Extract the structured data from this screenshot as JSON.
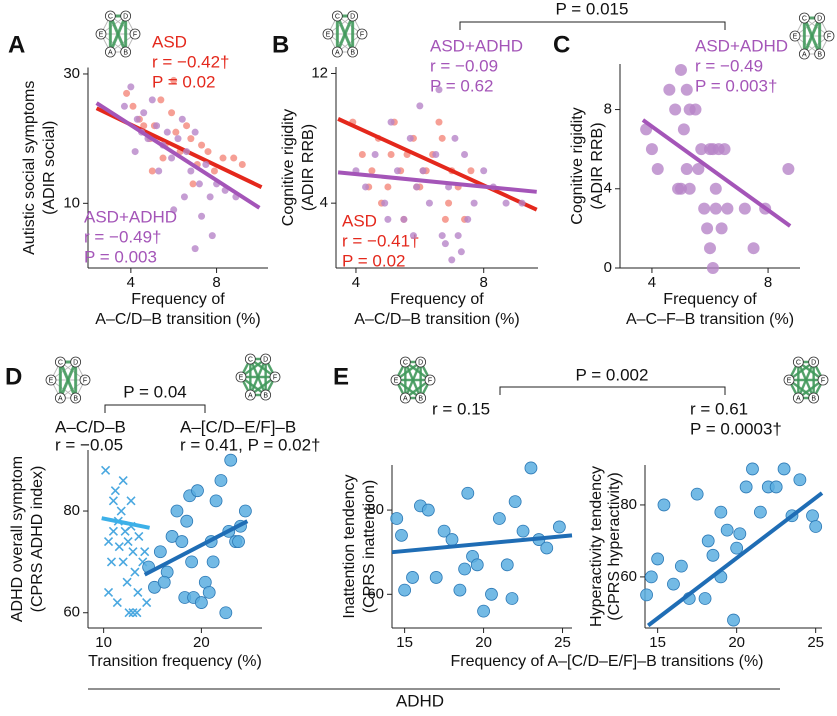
{
  "chart_data": [
    {
      "type": "scatter",
      "panel": "A",
      "xlabel": [
        "Frequency of",
        "A–C/D–B transition (%)"
      ],
      "ylabel": [
        "Autistic social symptoms",
        "(ADIR social)"
      ],
      "xlim": [
        2,
        10.4
      ],
      "ylim": [
        0,
        31
      ],
      "xticks": [
        4,
        8
      ],
      "yticks": [
        10,
        30
      ],
      "series": [
        {
          "name": "ASD",
          "stats": [
            "r = −0.42†",
            "P = 0.02"
          ],
          "color": "#f4877a",
          "fit_color": "#e4281c",
          "label_color": "#e4281c",
          "marker": "circle",
          "x": [
            3.8,
            4.1,
            4.4,
            4.6,
            4.9,
            5.1,
            5.4,
            5.6,
            5.9,
            6.1,
            6.3,
            6.6,
            6.8,
            7.1,
            7.3,
            7.6,
            7.9,
            8.3,
            8.8,
            9.2,
            5.0,
            5.5,
            6.0,
            6.9
          ],
          "values": [
            27,
            25,
            23,
            22,
            20,
            22,
            26,
            19,
            24,
            21,
            18,
            22,
            20,
            16,
            19,
            18,
            15,
            17,
            17,
            16,
            15,
            17,
            29,
            13
          ],
          "fit": {
            "x": [
              2.4,
              10.1
            ],
            "values": [
              24.7,
              12.5
            ]
          }
        },
        {
          "name": "ASD+ADHD",
          "stats": [
            "r = −0.49†",
            "P = 0.003"
          ],
          "color": "#b784c8",
          "fit_color": "#a455b8",
          "label_color": "#a455b8",
          "marker": "circle",
          "x": [
            3.7,
            4.0,
            4.3,
            4.5,
            4.8,
            5.0,
            5.2,
            5.5,
            5.7,
            5.9,
            6.2,
            6.4,
            6.6,
            6.8,
            7.0,
            7.2,
            7.5,
            7.7,
            8.0,
            8.4,
            8.9,
            4.2,
            5.3,
            6.5,
            7.3,
            4.6,
            7.8,
            7.0,
            6.0
          ],
          "values": [
            25,
            28,
            23,
            21,
            20,
            26,
            22,
            19,
            21,
            17,
            20,
            23,
            18,
            15,
            21,
            13,
            16,
            11,
            13,
            12,
            11,
            18,
            15,
            11,
            8,
            24,
            5,
            3,
            9
          ],
          "fit": {
            "x": [
              2.4,
              10.0
            ],
            "values": [
              25.5,
              9.3
            ]
          }
        }
      ]
    },
    {
      "type": "scatter",
      "panel": "B",
      "xlabel": [
        "Frequency of",
        "A–C/D–B transition (%)"
      ],
      "ylabel": [
        "Cognitive rigidity",
        "(ADIR RRB)"
      ],
      "xlim": [
        3.375,
        9.7
      ],
      "ylim": [
        0,
        12.4
      ],
      "xticks": [
        4,
        8
      ],
      "yticks": [
        4,
        12
      ],
      "series": [
        {
          "name": "ASD",
          "stats": [
            "r = −0.41†",
            "P = 0.02"
          ],
          "color": "#f4877a",
          "fit_color": "#e4281c",
          "label_color": "#e4281c",
          "marker": "circle",
          "x": [
            3.9,
            4.2,
            4.5,
            4.7,
            5.0,
            5.2,
            5.4,
            5.6,
            5.8,
            6.0,
            6.2,
            6.4,
            6.6,
            6.8,
            7.0,
            7.2,
            7.4,
            4.8,
            5.5,
            6.1,
            6.7,
            5.1,
            5.9,
            6.9,
            4.4,
            7.6
          ],
          "values": [
            9,
            7,
            6,
            8,
            5,
            9,
            6,
            7,
            8,
            5,
            6,
            7,
            9,
            3,
            6,
            5,
            3,
            4,
            3,
            6,
            8,
            7,
            5,
            4,
            5,
            6
          ],
          "fit": {
            "x": [
              3.44,
              9.66
            ],
            "values": [
              9.2,
              3.6
            ]
          }
        },
        {
          "name": "ASD+ADHD",
          "stats": [
            "r = −0.09",
            "P = 0.62"
          ],
          "color": "#b784c8",
          "fit_color": "#a455b8",
          "label_color": "#a455b8",
          "marker": "circle",
          "x": [
            4.0,
            4.3,
            4.6,
            4.9,
            5.1,
            5.3,
            5.5,
            5.7,
            5.9,
            6.1,
            6.3,
            6.5,
            6.7,
            6.9,
            7.1,
            7.3,
            7.5,
            7.7,
            8.0,
            8.3,
            8.7,
            9.2,
            6.0,
            6.6,
            7.2,
            7.0,
            5.0,
            6.8,
            7.4,
            5.8
          ],
          "values": [
            6,
            5,
            7,
            4,
            9,
            6,
            3,
            8,
            5,
            6,
            4,
            7,
            2,
            5,
            8,
            1,
            3,
            4,
            6,
            5,
            4,
            4,
            10,
            11,
            2,
            0.5,
            3,
            1.5,
            7,
            2
          ],
          "fit": {
            "x": [
              3.44,
              9.66
            ],
            "values": [
              5.9,
              4.7
            ]
          }
        }
      ]
    },
    {
      "type": "scatter",
      "panel": "C",
      "xlabel": [
        "Frequency of",
        "A–C–F–B transition (%)"
      ],
      "ylabel": [
        "Cognitive rigidity",
        "(ADIR RRB)"
      ],
      "xlim": [
        2.9,
        9.1
      ],
      "ylim": [
        0,
        10.3
      ],
      "xticks": [
        4,
        8
      ],
      "yticks": [
        0,
        4,
        8
      ],
      "series": [
        {
          "name": "ASD+ADHD",
          "stats": [
            "r = −0.49",
            "P = 0.003†"
          ],
          "color": "#b784c8",
          "fit_color": "#a455b8",
          "label_color": "#a455b8",
          "marker": "big",
          "x": [
            3.8,
            4.0,
            4.6,
            4.8,
            5.0,
            5.1,
            5.2,
            5.3,
            5.5,
            5.6,
            5.8,
            6.0,
            6.1,
            6.2,
            6.3,
            6.5,
            6.6,
            4.2,
            4.9,
            5.2,
            5.7,
            5.9,
            6.0,
            6.4,
            7.2,
            7.5,
            7.9,
            8.7,
            6.1,
            6.2,
            5.0,
            5.3
          ],
          "values": [
            7,
            6,
            9,
            8,
            4,
            7,
            5,
            8,
            8,
            5,
            3,
            6,
            6,
            3,
            6,
            6,
            3,
            5,
            4,
            9,
            6,
            2,
            1,
            2,
            3,
            1,
            3,
            5,
            0,
            4,
            10,
            4
          ],
          "fit": {
            "x": [
              3.69,
              8.76
            ],
            "values": [
              7.47,
              2.12
            ]
          }
        }
      ]
    },
    {
      "type": "scatter",
      "panel": "D",
      "xlabel": [
        "Transition frequency (%)"
      ],
      "ylabel": [
        "ADHD overall symptom",
        "(CPRS ADHD index)"
      ],
      "xlim": [
        8.4,
        26.2
      ],
      "ylim": [
        57,
        92
      ],
      "xticks": [
        10,
        20
      ],
      "yticks": [
        60,
        80
      ],
      "series": [
        {
          "name": "A–C/D–B",
          "stats": [
            "r = −0.05"
          ],
          "color": "#4aa8e0",
          "fit_color": "#3cb0e8",
          "label_color": "#111111",
          "marker": "x",
          "x": [
            10.2,
            10.5,
            10.8,
            11.0,
            11.2,
            11.4,
            11.6,
            11.8,
            12.0,
            12.2,
            12.4,
            12.6,
            12.8,
            13.0,
            13.2,
            13.4,
            13.6,
            14.0,
            14.4,
            11.5,
            12.5,
            13.5,
            10.5,
            13.0,
            12.0,
            11.0,
            14.2,
            12.8
          ],
          "values": [
            88,
            64,
            70,
            82,
            84,
            62,
            73,
            80,
            86,
            76,
            66,
            60,
            77,
            72,
            68,
            60,
            75,
            70,
            62,
            78,
            74,
            64,
            74,
            60,
            70,
            76,
            72,
            82
          ],
          "fit": {
            "x": [
              9.8,
              14.7
            ],
            "values": [
              78.6,
              76.7
            ]
          }
        },
        {
          "name": "A–[C/D–E/F]–B",
          "stats": [
            "r = 0.41, P = 0.02†"
          ],
          "color": "#5aaee0",
          "edge_color": "#2b78b5",
          "fit_color": "#1f6db5",
          "label_color": "#111111",
          "marker": "big",
          "x": [
            14.6,
            15.2,
            15.8,
            16.5,
            17.0,
            17.5,
            18.0,
            18.3,
            18.8,
            19.2,
            19.6,
            20.0,
            20.4,
            21.0,
            21.5,
            22.0,
            22.5,
            23.0,
            23.5,
            24.0,
            24.5,
            19.0,
            20.8,
            22.8,
            16.2,
            18.5,
            21.2,
            23.8
          ],
          "values": [
            69,
            65,
            72,
            68,
            75,
            80,
            74,
            63,
            83,
            63,
            84,
            62,
            66,
            74,
            82,
            86,
            60,
            90,
            74,
            77,
            80,
            70,
            64,
            76,
            66,
            78,
            70,
            74
          ],
          "fit": {
            "x": [
              14.2,
              24.7
            ],
            "values": [
              67.5,
              78.0
            ]
          }
        }
      ]
    },
    {
      "type": "scatter",
      "panel": "E",
      "xlabel": [
        "Frequency of A–[C/D–E/F]–B transitions (%)"
      ],
      "ylabel": [
        "Inattention tendency",
        "(CPRS inattention)"
      ],
      "xlim": [
        14.2,
        25.6
      ],
      "ylim": [
        52,
        90.7
      ],
      "xticks": [
        15,
        20,
        25
      ],
      "yticks": [
        60,
        80
      ],
      "series": [
        {
          "stats": [
            "r = 0.15"
          ],
          "color": "#5aaee0",
          "edge_color": "#2b78b5",
          "fit_color": "#1f6db5",
          "label_color": "#111111",
          "marker": "big",
          "x": [
            14.5,
            15.0,
            15.5,
            16.0,
            16.5,
            17.0,
            17.5,
            18.0,
            18.5,
            19.0,
            19.3,
            19.6,
            20.0,
            20.5,
            21.0,
            21.5,
            22.0,
            22.5,
            23.0,
            23.5,
            24.0,
            24.8,
            14.8,
            18.8,
            21.8
          ],
          "values": [
            78,
            61,
            64,
            81,
            80,
            64,
            75,
            73,
            61,
            84,
            69,
            67,
            56,
            60,
            78,
            67,
            82,
            75,
            90,
            73,
            71,
            76,
            74,
            66,
            59
          ],
          "fit": {
            "x": [
              14.2,
              25.6
            ],
            "values": [
              70.0,
              74.0
            ]
          }
        }
      ]
    },
    {
      "type": "scatter",
      "ylabel": [
        "Hyperactivity tendency",
        "(CPRS hyperactivity)"
      ],
      "xlim": [
        14.2,
        25.4
      ],
      "ylim": [
        45.8,
        91.1
      ],
      "xticks": [
        15,
        20,
        25
      ],
      "yticks": [
        60,
        80
      ],
      "series": [
        {
          "stats": [
            "r = 0.61",
            "P = 0.0003†"
          ],
          "color": "#5aaee0",
          "edge_color": "#2b78b5",
          "fit_color": "#1f6db5",
          "label_color": "#111111",
          "marker": "big",
          "x": [
            14.3,
            14.6,
            15.0,
            15.4,
            16.0,
            16.5,
            17.0,
            17.5,
            18.0,
            18.5,
            19.0,
            19.4,
            19.8,
            20.2,
            20.6,
            21.0,
            21.5,
            22.0,
            22.5,
            23.0,
            23.5,
            24.0,
            24.8,
            25.0,
            19.0,
            18.2,
            20.0
          ],
          "values": [
            55,
            60,
            65,
            80,
            58,
            63,
            54,
            83,
            54,
            66,
            78,
            73,
            48,
            72,
            85,
            90,
            78,
            85,
            85,
            90,
            77,
            87,
            77,
            74,
            60,
            70,
            68
          ],
          "fit": {
            "x": [
              14.4,
              25.4
            ],
            "values": [
              46.5,
              83.3
            ]
          }
        }
      ]
    }
  ],
  "figure": {
    "comparisons": [
      "P = 0.015",
      "P = 0.04",
      "P = 0.002"
    ],
    "group_label": "ADHD",
    "network_nodes": [
      "C",
      "D",
      "E",
      "F",
      "A",
      "B"
    ]
  }
}
